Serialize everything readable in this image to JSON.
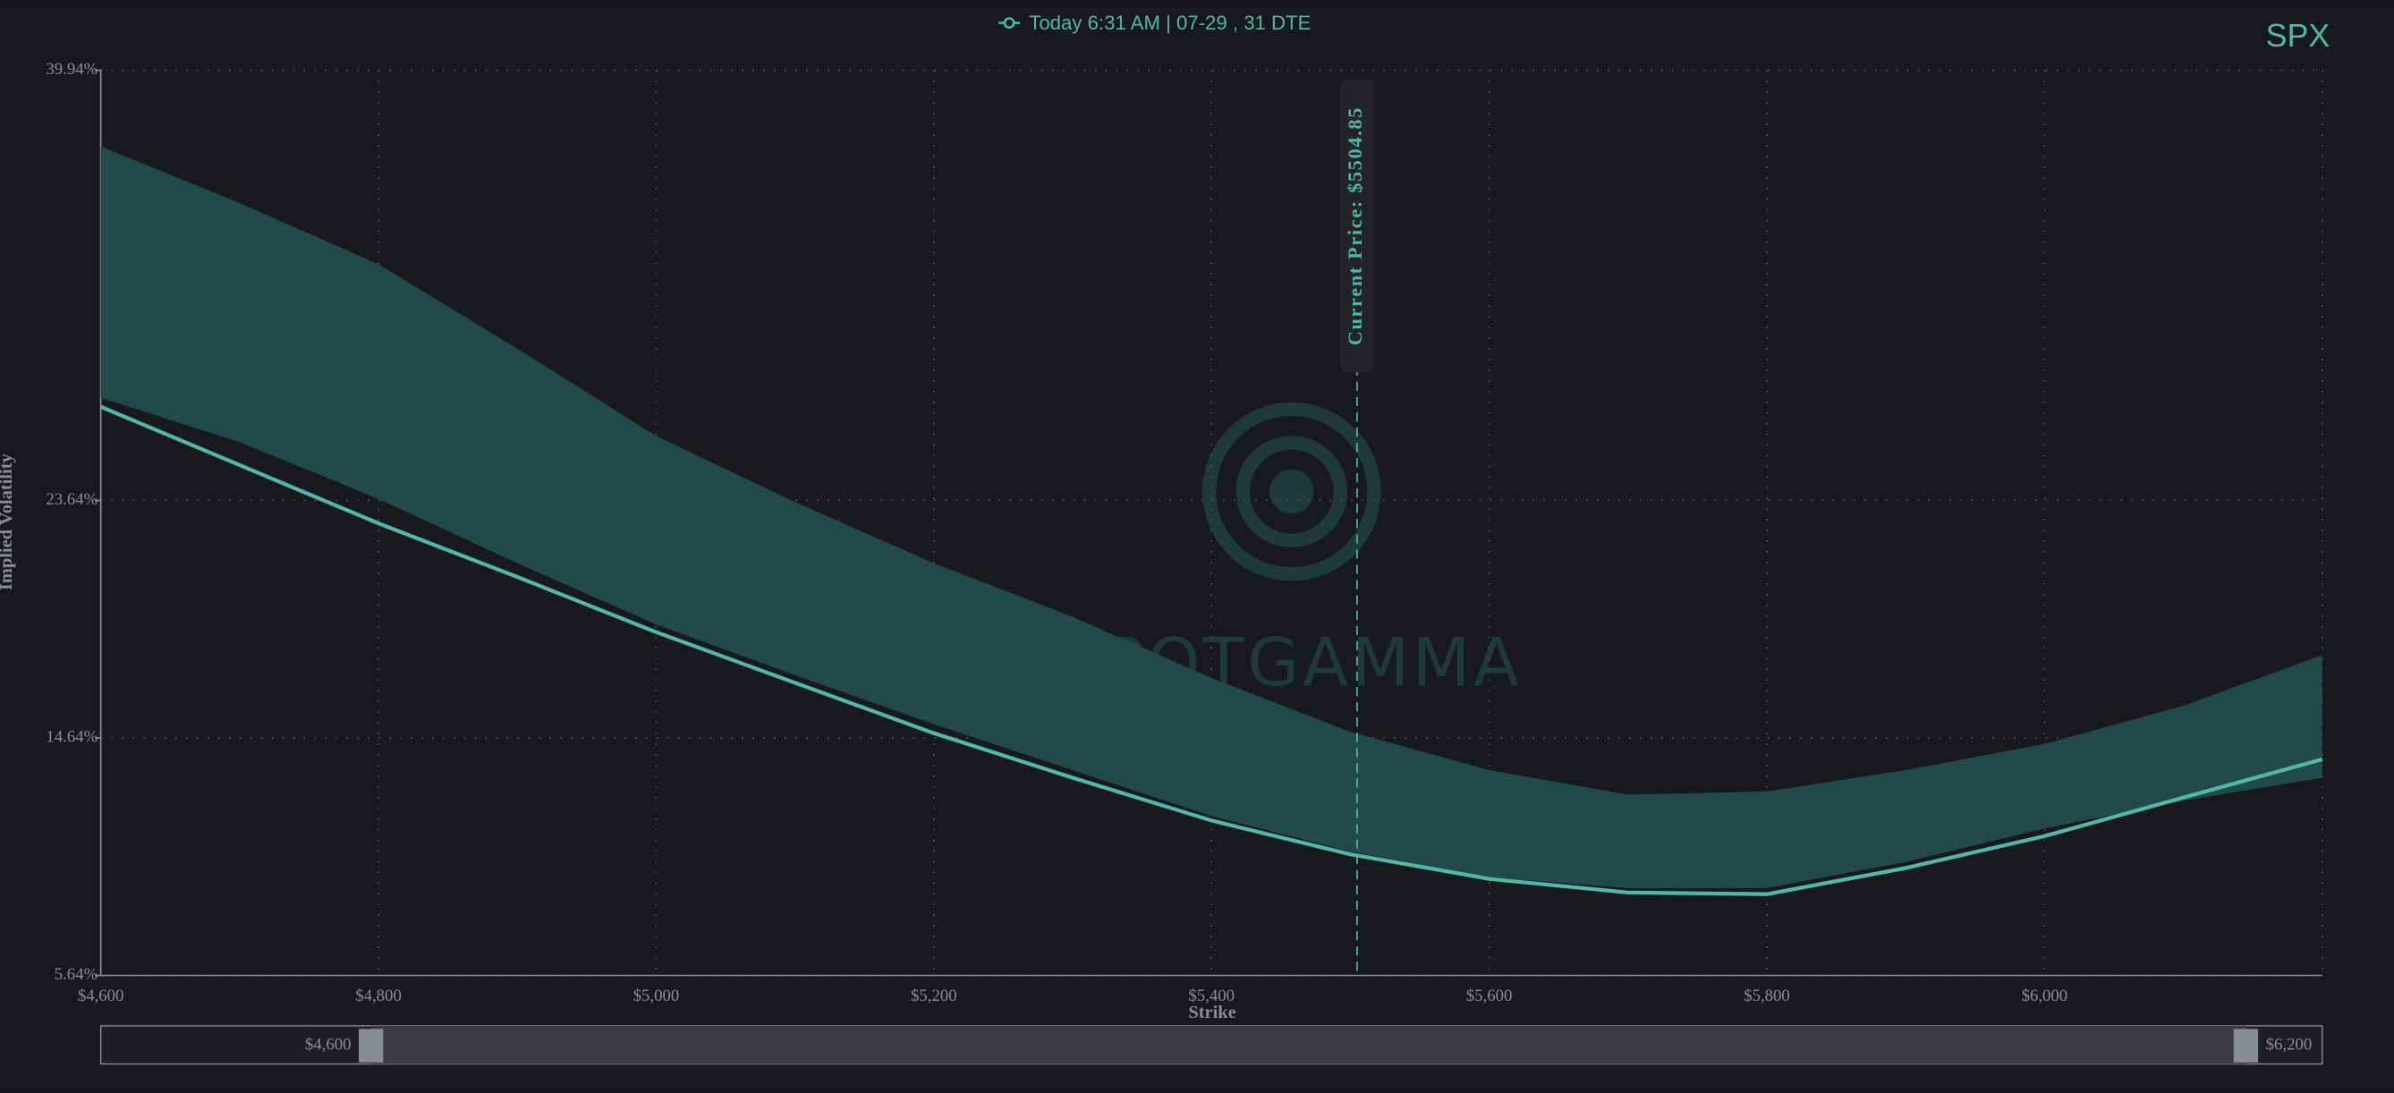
{
  "chart_data": {
    "type": "line",
    "ticker": "SPX",
    "x_label": "Strike",
    "y_label": "Implied Volatility",
    "watermark": "SPOTGAMMA",
    "x": [
      4600,
      4700,
      4800,
      4900,
      5000,
      5100,
      5200,
      5300,
      5400,
      5500,
      5600,
      5700,
      5800,
      5900,
      6000,
      6100,
      6200
    ],
    "series": [
      {
        "name": "Today 6:31 AM | 07-29 , 31 DTE",
        "color": "#4fb8a8",
        "values": [
          27.19,
          24.98,
          22.77,
          20.74,
          18.65,
          16.73,
          14.82,
          13.13,
          11.51,
          10.23,
          9.3,
          8.78,
          8.72,
          9.71,
          10.92,
          12.38,
          13.83
        ]
      }
    ],
    "band": {
      "color": "#234a4a",
      "upper": [
        37.06,
        34.91,
        32.59,
        29.39,
        26.08,
        23.58,
        21.26,
        19.23,
        16.91,
        14.87,
        13.42,
        12.49,
        12.61,
        13.42,
        14.41,
        15.86,
        17.78
      ],
      "lower": [
        27.53,
        25.85,
        23.7,
        21.26,
        18.94,
        17.02,
        15.16,
        13.42,
        11.68,
        10.34,
        9.36,
        8.95,
        8.95,
        9.94,
        11.21,
        12.26,
        13.13
      ]
    },
    "annotations": [
      {
        "x": 5504.85,
        "label": "Current Price: $5504.85"
      }
    ],
    "xlim": [
      4600,
      6200
    ],
    "ylim": [
      5.64,
      39.94
    ],
    "xticks": [
      {
        "value": 4600,
        "label": "$4,600"
      },
      {
        "value": 4800,
        "label": "$4,800"
      },
      {
        "value": 5000,
        "label": "$5,000"
      },
      {
        "value": 5200,
        "label": "$5,200"
      },
      {
        "value": 5400,
        "label": "$5,400"
      },
      {
        "value": 5600,
        "label": "$5,600"
      },
      {
        "value": 5800,
        "label": "$5,800"
      },
      {
        "value": 6000,
        "label": "$6,000"
      }
    ],
    "yticks": [
      {
        "value": 5.64,
        "label": "5.64%"
      },
      {
        "value": 14.64,
        "label": "14.64%"
      },
      {
        "value": 23.64,
        "label": "23.64%"
      },
      {
        "value": 39.94,
        "label": "39.94%"
      }
    ],
    "grid": true,
    "range_slider": {
      "start_label": "$4,600",
      "end_label": "$6,200"
    }
  }
}
